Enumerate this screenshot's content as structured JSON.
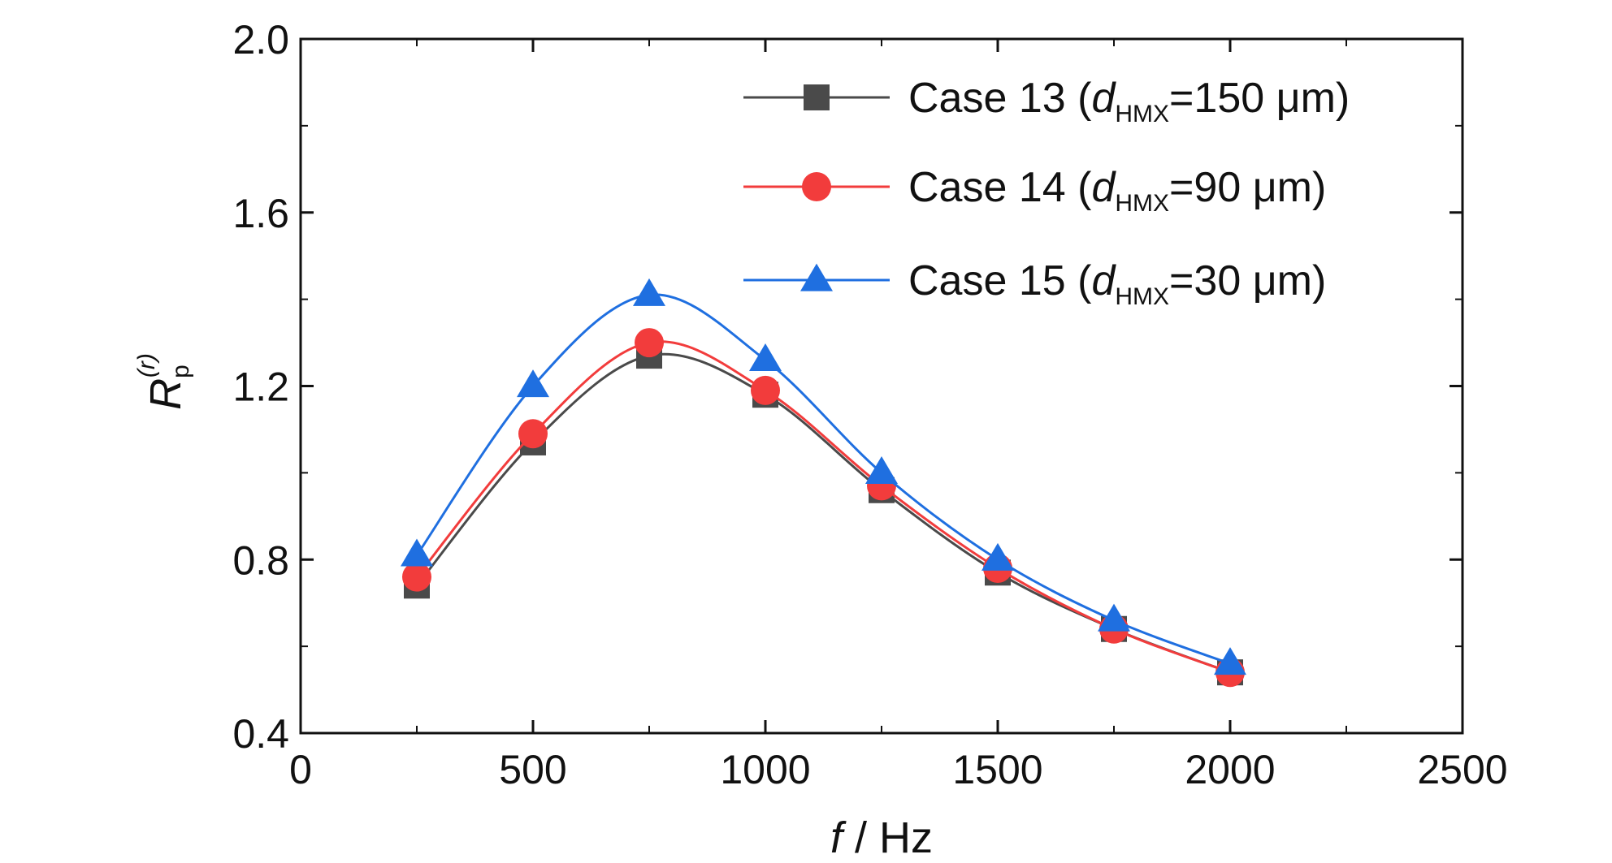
{
  "chart_data": {
    "type": "line",
    "title": "",
    "xlabel": {
      "var": "f",
      "unit": " / Hz"
    },
    "ylabel": {
      "main": "R",
      "sub": "p",
      "sup": "(r)"
    },
    "xlim": [
      0,
      2500
    ],
    "ylim": [
      0.4,
      2.0
    ],
    "xticks": [
      0,
      500,
      1000,
      1500,
      2000,
      2500
    ],
    "xtick_labels": [
      "0",
      "500",
      "1000",
      "1500",
      "2000",
      "2500"
    ],
    "yticks": [
      0.4,
      0.8,
      1.2,
      1.6,
      2.0
    ],
    "ytick_labels": [
      "0.4",
      "0.8",
      "1.2",
      "1.6",
      "2.0"
    ],
    "grid": false,
    "legend_position": "top-right",
    "x": [
      250,
      500,
      750,
      1000,
      1250,
      1500,
      1750,
      2000
    ],
    "series": [
      {
        "name": "Case 13 (dHMX=150 μm)",
        "legend": {
          "prefix": "Case 13 (",
          "var": "d",
          "sub": "HMX",
          "suffix": "=150 μm)"
        },
        "marker": "square",
        "color": "#4a4a4a",
        "values": [
          0.74,
          1.07,
          1.27,
          1.18,
          0.96,
          0.77,
          0.64,
          0.54
        ]
      },
      {
        "name": "Case 14 (dHMX=90 μm)",
        "legend": {
          "prefix": "Case 14 (",
          "var": "d",
          "sub": "HMX",
          "suffix": "=90 μm)"
        },
        "marker": "circle",
        "color": "#f23c3c",
        "values": [
          0.76,
          1.09,
          1.3,
          1.19,
          0.97,
          0.78,
          0.64,
          0.54
        ]
      },
      {
        "name": "Case 15 (dHMX=30 μm)",
        "legend": {
          "prefix": "Case 15 (",
          "var": "d",
          "sub": "HMX",
          "suffix": "=30 μm)"
        },
        "marker": "triangle",
        "color": "#1f6fe0",
        "values": [
          0.81,
          1.2,
          1.41,
          1.26,
          1.0,
          0.8,
          0.66,
          0.56
        ]
      }
    ]
  }
}
